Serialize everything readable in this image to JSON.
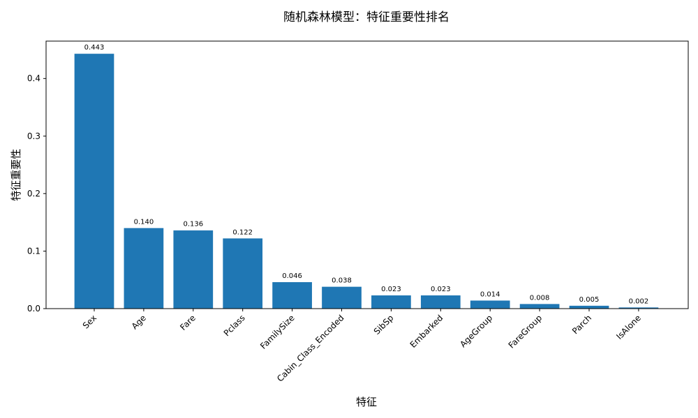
{
  "chart_data": {
    "type": "bar",
    "title": "随机森林模型：特征重要性排名",
    "xlabel": "特征",
    "ylabel": "特征重要性",
    "categories": [
      "Sex",
      "Age",
      "Fare",
      "Pclass",
      "FamilySize",
      "Cabin_Class_Encoded",
      "SibSp",
      "Embarked",
      "AgeGroup",
      "FareGroup",
      "Parch",
      "IsAlone"
    ],
    "values": [
      0.443,
      0.14,
      0.136,
      0.122,
      0.046,
      0.038,
      0.023,
      0.023,
      0.014,
      0.008,
      0.005,
      0.002
    ],
    "value_labels": [
      "0.443",
      "0.140",
      "0.136",
      "0.122",
      "0.046",
      "0.038",
      "0.023",
      "0.023",
      "0.014",
      "0.008",
      "0.005",
      "0.002"
    ],
    "ylim": [
      0,
      0.465
    ],
    "yticks": [
      0.0,
      0.1,
      0.2,
      0.3,
      0.4
    ],
    "ytick_labels": [
      "0.0",
      "0.1",
      "0.2",
      "0.3",
      "0.4"
    ],
    "grid": false,
    "bar_color": "#1f77b4",
    "xtick_rotation_deg": 45
  }
}
